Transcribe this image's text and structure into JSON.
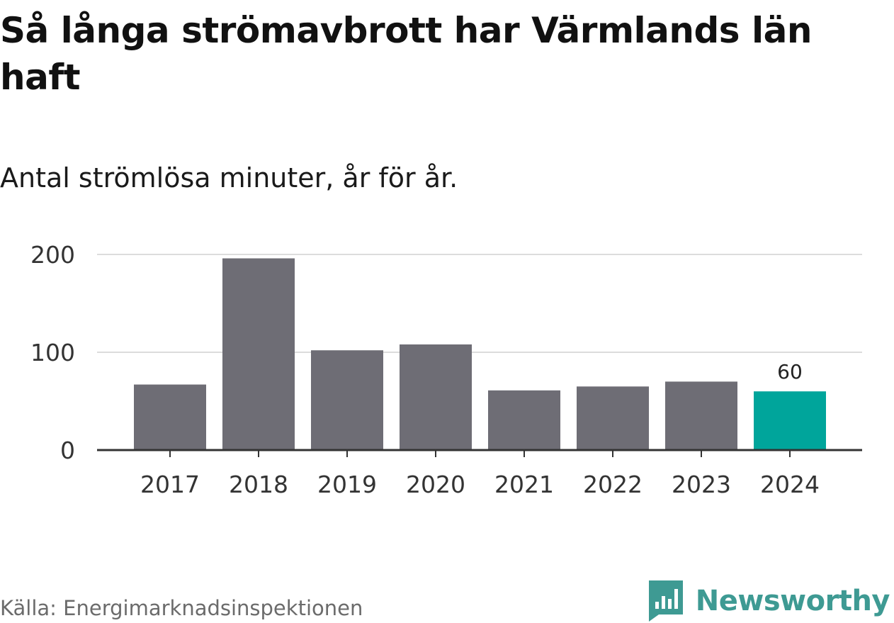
{
  "header": {
    "title": "Så långa strömavbrott har Värmlands län haft",
    "subtitle": "Antal strömlösa minuter, år för år."
  },
  "footer": {
    "source": "Källa: Energimarknadsinspektionen",
    "brand_name": "Newsworthy",
    "brand_icon": "newsworthy-logo-icon"
  },
  "colors": {
    "bar": "#6e6d75",
    "highlight": "#00a59b",
    "grid": "#dcdcdc",
    "axis": "#333333",
    "brand": "#3e9a93"
  },
  "chart_data": {
    "type": "bar",
    "categories": [
      "2017",
      "2018",
      "2019",
      "2020",
      "2021",
      "2022",
      "2023",
      "2024"
    ],
    "values": [
      67,
      196,
      102,
      108,
      61,
      65,
      70,
      60
    ],
    "highlight_index": 7,
    "data_labels": [
      {
        "index": 7,
        "text": "60"
      }
    ],
    "ylim": [
      0,
      200
    ],
    "yticks": [
      0,
      100,
      200
    ],
    "grid": true,
    "legend": "none"
  }
}
